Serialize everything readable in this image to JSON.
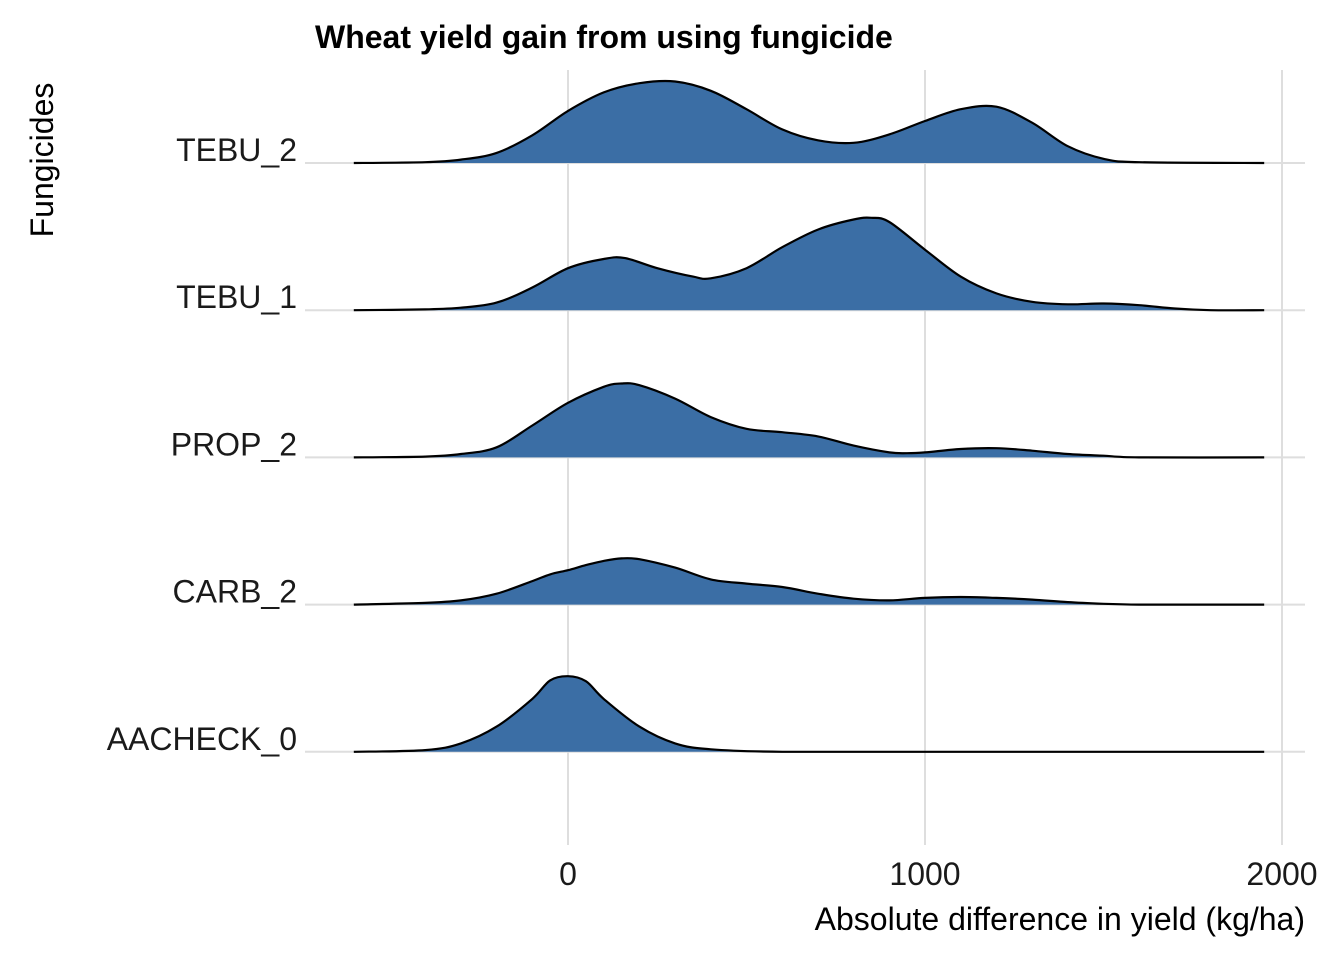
{
  "chart_data": {
    "type": "area",
    "subtype": "ridgeline-density",
    "title": "Wheat yield gain from using fungicide",
    "xlabel": "Absolute difference in yield (kg/ha)",
    "ylabel": "Fungicides",
    "xlim": [
      -600,
      1950
    ],
    "xticks": [
      0,
      1000,
      2000
    ],
    "xtick_labels": [
      "0",
      "1000",
      "2000"
    ],
    "grid": true,
    "fill_color": "#3B6EA5",
    "line_color": "#000000",
    "categories": [
      "AACHECK_0",
      "CARB_2",
      "PROP_2",
      "TEBU_1",
      "TEBU_2"
    ],
    "series": [
      {
        "name": "AACHECK_0",
        "x": [
          -600,
          -400,
          -300,
          -200,
          -100,
          -50,
          0,
          50,
          100,
          200,
          300,
          400,
          600,
          1000,
          1500,
          1950
        ],
        "density": [
          0.0,
          0.02,
          0.1,
          0.3,
          0.63,
          0.85,
          0.9,
          0.84,
          0.63,
          0.3,
          0.1,
          0.03,
          0.0,
          0.0,
          0.0,
          0.0
        ]
      },
      {
        "name": "CARB_2",
        "x": [
          -600,
          -400,
          -300,
          -200,
          -100,
          -50,
          0,
          50,
          100,
          150,
          200,
          300,
          400,
          500,
          600,
          700,
          800,
          900,
          1000,
          1100,
          1200,
          1300,
          1400,
          1500,
          1600,
          1700,
          1950
        ],
        "density": [
          0.0,
          0.02,
          0.05,
          0.13,
          0.28,
          0.36,
          0.41,
          0.47,
          0.52,
          0.55,
          0.54,
          0.44,
          0.3,
          0.25,
          0.21,
          0.13,
          0.07,
          0.05,
          0.08,
          0.09,
          0.08,
          0.06,
          0.03,
          0.01,
          0.0,
          0.0,
          0.0
        ]
      },
      {
        "name": "PROP_2",
        "x": [
          -600,
          -400,
          -300,
          -200,
          -100,
          0,
          100,
          150,
          200,
          300,
          400,
          500,
          600,
          700,
          800,
          900,
          950,
          1000,
          1100,
          1200,
          1300,
          1400,
          1500,
          1600,
          1950
        ],
        "density": [
          0.0,
          0.01,
          0.04,
          0.12,
          0.38,
          0.65,
          0.84,
          0.88,
          0.86,
          0.7,
          0.48,
          0.34,
          0.3,
          0.25,
          0.14,
          0.06,
          0.05,
          0.06,
          0.1,
          0.11,
          0.08,
          0.04,
          0.02,
          0.0,
          0.0
        ]
      },
      {
        "name": "TEBU_1",
        "x": [
          -600,
          -400,
          -300,
          -200,
          -100,
          0,
          100,
          160,
          250,
          350,
          400,
          500,
          600,
          700,
          800,
          850,
          900,
          1000,
          1100,
          1200,
          1300,
          1400,
          1500,
          1600,
          1700,
          1800,
          1950
        ],
        "density": [
          0.0,
          0.01,
          0.03,
          0.09,
          0.27,
          0.5,
          0.61,
          0.62,
          0.5,
          0.4,
          0.38,
          0.5,
          0.75,
          0.96,
          1.08,
          1.1,
          1.05,
          0.72,
          0.4,
          0.2,
          0.1,
          0.07,
          0.08,
          0.06,
          0.02,
          0.0,
          0.0
        ]
      },
      {
        "name": "TEBU_2",
        "x": [
          -600,
          -400,
          -300,
          -200,
          -100,
          0,
          100,
          200,
          300,
          400,
          500,
          600,
          700,
          800,
          900,
          1000,
          1100,
          1200,
          1300,
          1400,
          1500,
          1600,
          1950
        ],
        "density": [
          0.0,
          0.01,
          0.04,
          0.12,
          0.33,
          0.62,
          0.84,
          0.95,
          0.97,
          0.86,
          0.64,
          0.4,
          0.27,
          0.24,
          0.34,
          0.5,
          0.64,
          0.67,
          0.48,
          0.2,
          0.05,
          0.01,
          0.0
        ]
      }
    ]
  }
}
